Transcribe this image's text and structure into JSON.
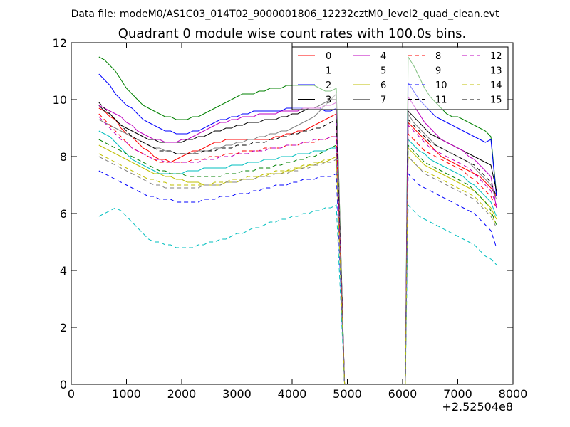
{
  "figure": {
    "suptitle": "Data file: modeM0/AS1C03_014T02_9000001806_12232cztM0_level2_quad_clean.evt"
  },
  "chart_data": {
    "type": "line",
    "title": "Quadrant 0 module wise count rates with 100.0s bins.",
    "xlabel": "",
    "ylabel": "",
    "x_offset_label": "+2.52504e8",
    "xlim": [
      0,
      8000
    ],
    "ylim": [
      0,
      12
    ],
    "xticks": [
      0,
      1000,
      2000,
      3000,
      4000,
      5000,
      6000,
      7000,
      8000
    ],
    "yticks": [
      0,
      2,
      4,
      6,
      8,
      10,
      12
    ],
    "grid": false,
    "legend_position": "top-right",
    "legend_columns": 4,
    "gap": {
      "start": 4950,
      "end": 6050,
      "value": 0
    },
    "segment1": {
      "x_start": 500,
      "x_end": 4800
    },
    "segment2": {
      "x_start": 6100,
      "x_end": 7700
    },
    "series": [
      {
        "name": "0",
        "color": "#ff0000",
        "dash": "solid",
        "seg1": [
          9.7,
          9.6,
          9.4,
          9.3,
          9.0,
          8.8,
          8.7,
          8.5,
          8.3,
          8.2,
          8.0,
          7.9,
          7.9,
          7.8,
          7.9,
          8.0,
          8.1,
          8.2,
          8.2,
          8.3,
          8.4,
          8.5,
          8.5,
          8.6,
          8.6,
          8.6,
          8.6,
          8.6,
          8.6,
          8.6,
          8.6,
          8.6,
          8.7,
          8.7,
          8.8,
          8.8,
          8.9,
          8.9,
          9.0,
          9.1,
          9.2,
          9.3,
          9.4,
          9.5
        ],
        "seg2": [
          9.2,
          9.0,
          8.8,
          8.6,
          8.4,
          8.2,
          8.0,
          7.9,
          7.8,
          7.7,
          7.6,
          7.5,
          7.4,
          7.3,
          7.1,
          6.9,
          6.6
        ]
      },
      {
        "name": "1",
        "color": "#008000",
        "dash": "solid",
        "seg1": [
          11.5,
          11.4,
          11.2,
          11.0,
          10.7,
          10.4,
          10.2,
          10.0,
          9.8,
          9.7,
          9.6,
          9.5,
          9.4,
          9.4,
          9.3,
          9.3,
          9.3,
          9.4,
          9.4,
          9.5,
          9.6,
          9.7,
          9.8,
          9.9,
          10.0,
          10.1,
          10.2,
          10.2,
          10.2,
          10.3,
          10.3,
          10.4,
          10.4,
          10.4,
          10.5,
          10.5,
          10.5,
          10.5,
          10.5,
          10.5,
          10.4,
          10.3,
          10.3,
          10.4
        ],
        "seg2": [
          11.5,
          11.2,
          10.8,
          10.4,
          10.1,
          9.9,
          9.7,
          9.5,
          9.4,
          9.4,
          9.3,
          9.2,
          9.1,
          9.0,
          8.9,
          8.7,
          6.7
        ]
      },
      {
        "name": "2",
        "color": "#0000ff",
        "dash": "solid",
        "seg1": [
          10.9,
          10.7,
          10.5,
          10.2,
          10.0,
          9.8,
          9.7,
          9.5,
          9.3,
          9.2,
          9.1,
          9.0,
          8.9,
          8.9,
          8.8,
          8.8,
          8.8,
          8.9,
          8.9,
          9.0,
          9.1,
          9.2,
          9.3,
          9.3,
          9.4,
          9.4,
          9.5,
          9.5,
          9.6,
          9.6,
          9.6,
          9.6,
          9.6,
          9.6,
          9.7,
          9.7,
          9.7,
          9.7,
          9.7,
          9.7,
          9.7,
          9.6,
          9.6,
          9.7
        ],
        "seg2": [
          10.6,
          10.3,
          10.0,
          9.8,
          9.6,
          9.4,
          9.3,
          9.2,
          9.1,
          9.0,
          8.9,
          8.8,
          8.7,
          8.6,
          8.5,
          8.6,
          6.6
        ]
      },
      {
        "name": "3",
        "color": "#000000",
        "dash": "solid",
        "seg1": [
          9.8,
          9.6,
          9.5,
          9.3,
          9.1,
          9.0,
          8.9,
          8.8,
          8.7,
          8.6,
          8.6,
          8.5,
          8.5,
          8.5,
          8.5,
          8.5,
          8.6,
          8.6,
          8.7,
          8.7,
          8.8,
          8.9,
          8.9,
          9.0,
          9.0,
          9.1,
          9.1,
          9.2,
          9.2,
          9.2,
          9.3,
          9.3,
          9.3,
          9.4,
          9.4,
          9.5,
          9.5,
          9.6,
          9.7,
          9.7,
          9.8,
          9.9,
          10.0,
          10.0
        ],
        "seg2": [
          9.6,
          9.4,
          9.2,
          9.0,
          8.8,
          8.7,
          8.6,
          8.5,
          8.4,
          8.3,
          8.2,
          8.1,
          8.0,
          7.9,
          7.8,
          7.7,
          6.8
        ]
      },
      {
        "name": "4",
        "color": "#bf00bf",
        "dash": "solid",
        "seg1": [
          9.8,
          9.7,
          9.6,
          9.5,
          9.4,
          9.2,
          9.1,
          8.9,
          8.8,
          8.7,
          8.6,
          8.6,
          8.5,
          8.5,
          8.5,
          8.6,
          8.6,
          8.7,
          8.8,
          8.9,
          9.0,
          9.1,
          9.2,
          9.2,
          9.3,
          9.3,
          9.4,
          9.4,
          9.4,
          9.5,
          9.5,
          9.5,
          9.5,
          9.6,
          9.6,
          9.6,
          9.6,
          9.7,
          9.7,
          9.7,
          9.7,
          9.8,
          9.8,
          9.9
        ],
        "seg2": [
          10.1,
          9.8,
          9.5,
          9.2,
          9.0,
          8.8,
          8.6,
          8.5,
          8.4,
          8.3,
          8.2,
          8.0,
          7.9,
          7.7,
          7.5,
          7.3,
          6.2
        ]
      },
      {
        "name": "5",
        "color": "#00bfbf",
        "dash": "solid",
        "seg1": [
          8.9,
          8.8,
          8.7,
          8.5,
          8.3,
          8.1,
          7.9,
          7.8,
          7.7,
          7.6,
          7.5,
          7.4,
          7.4,
          7.4,
          7.4,
          7.4,
          7.5,
          7.5,
          7.5,
          7.6,
          7.6,
          7.6,
          7.6,
          7.6,
          7.7,
          7.7,
          7.7,
          7.8,
          7.8,
          7.8,
          7.9,
          7.9,
          7.9,
          8.0,
          8.0,
          8.0,
          8.1,
          8.1,
          8.1,
          8.2,
          8.2,
          8.2,
          8.3,
          8.3
        ],
        "seg2": [
          8.6,
          8.4,
          8.2,
          8.1,
          7.9,
          7.8,
          7.7,
          7.6,
          7.5,
          7.4,
          7.3,
          7.1,
          7.0,
          6.8,
          6.6,
          6.4,
          5.9
        ]
      },
      {
        "name": "6",
        "color": "#bfbf00",
        "dash": "solid",
        "seg1": [
          8.4,
          8.3,
          8.2,
          8.1,
          8.0,
          7.9,
          7.8,
          7.7,
          7.6,
          7.5,
          7.4,
          7.4,
          7.3,
          7.3,
          7.2,
          7.2,
          7.1,
          7.1,
          7.1,
          7.0,
          7.0,
          7.0,
          7.0,
          7.1,
          7.1,
          7.1,
          7.2,
          7.2,
          7.2,
          7.3,
          7.3,
          7.4,
          7.4,
          7.4,
          7.5,
          7.5,
          7.6,
          7.6,
          7.7,
          7.7,
          7.8,
          7.8,
          7.9,
          8.0
        ],
        "seg2": [
          8.3,
          8.1,
          7.9,
          7.7,
          7.6,
          7.5,
          7.4,
          7.3,
          7.2,
          7.1,
          7.0,
          6.9,
          6.8,
          6.6,
          6.4,
          6.2,
          5.8
        ]
      },
      {
        "name": "7",
        "color": "#808080",
        "dash": "solid",
        "seg1": [
          9.3,
          9.2,
          9.1,
          9.0,
          8.9,
          8.8,
          8.7,
          8.6,
          8.5,
          8.4,
          8.3,
          8.3,
          8.2,
          8.2,
          8.1,
          8.1,
          8.1,
          8.1,
          8.2,
          8.2,
          8.2,
          8.3,
          8.3,
          8.4,
          8.4,
          8.5,
          8.5,
          8.6,
          8.6,
          8.7,
          8.7,
          8.8,
          8.8,
          8.9,
          8.9,
          9.0,
          9.1,
          9.2,
          9.3,
          9.4,
          9.6,
          9.8,
          10.0,
          10.2
        ],
        "seg2": [
          9.5,
          9.2,
          9.0,
          8.8,
          8.6,
          8.4,
          8.3,
          8.2,
          8.1,
          8.0,
          7.9,
          7.8,
          7.6,
          7.4,
          7.2,
          7.0,
          6.5
        ]
      },
      {
        "name": "8",
        "color": "#ff0000",
        "dash": "dashed",
        "seg1": [
          9.5,
          9.3,
          9.1,
          8.9,
          8.7,
          8.5,
          8.3,
          8.2,
          8.1,
          8.0,
          7.9,
          7.8,
          7.8,
          7.8,
          7.8,
          7.8,
          7.8,
          7.9,
          7.9,
          7.9,
          8.0,
          8.0,
          8.0,
          8.1,
          8.1,
          8.1,
          8.2,
          8.2,
          8.2,
          8.2,
          8.3,
          8.3,
          8.3,
          8.3,
          8.4,
          8.4,
          8.4,
          8.5,
          8.5,
          8.5,
          8.6,
          8.6,
          8.7,
          8.7
        ],
        "seg2": [
          8.8,
          8.6,
          8.4,
          8.2,
          8.1,
          8.0,
          7.9,
          7.8,
          7.7,
          7.6,
          7.5,
          7.3,
          7.2,
          7.0,
          6.8,
          6.6,
          6.2
        ]
      },
      {
        "name": "9",
        "color": "#008000",
        "dash": "dashed",
        "seg1": [
          8.6,
          8.5,
          8.4,
          8.3,
          8.2,
          8.1,
          8.0,
          7.9,
          7.8,
          7.7,
          7.6,
          7.5,
          7.5,
          7.4,
          7.4,
          7.4,
          7.3,
          7.3,
          7.3,
          7.3,
          7.3,
          7.3,
          7.3,
          7.4,
          7.4,
          7.4,
          7.5,
          7.5,
          7.5,
          7.6,
          7.6,
          7.6,
          7.7,
          7.7,
          7.8,
          7.8,
          7.9,
          7.9,
          8.0,
          8.0,
          8.1,
          8.2,
          8.3,
          8.4
        ],
        "seg2": [
          8.4,
          8.2,
          8.0,
          7.8,
          7.7,
          7.6,
          7.5,
          7.4,
          7.3,
          7.2,
          7.1,
          7.0,
          6.8,
          6.6,
          6.4,
          6.1,
          5.6
        ]
      },
      {
        "name": "10",
        "color": "#0000ff",
        "dash": "dashed",
        "seg1": [
          7.5,
          7.4,
          7.3,
          7.2,
          7.1,
          7.0,
          6.9,
          6.8,
          6.7,
          6.6,
          6.6,
          6.5,
          6.5,
          6.5,
          6.4,
          6.4,
          6.4,
          6.4,
          6.4,
          6.5,
          6.5,
          6.5,
          6.6,
          6.6,
          6.6,
          6.7,
          6.7,
          6.7,
          6.8,
          6.8,
          6.9,
          6.9,
          7.0,
          7.0,
          7.0,
          7.1,
          7.1,
          7.2,
          7.2,
          7.2,
          7.3,
          7.3,
          7.3,
          7.4
        ],
        "seg2": [
          7.4,
          7.2,
          7.0,
          6.9,
          6.8,
          6.7,
          6.6,
          6.5,
          6.4,
          6.3,
          6.2,
          6.1,
          6.0,
          5.8,
          5.6,
          5.4,
          4.8
        ]
      },
      {
        "name": "11",
        "color": "#000000",
        "dash": "dashed",
        "seg1": [
          9.9,
          9.7,
          9.5,
          9.3,
          9.1,
          8.9,
          8.7,
          8.6,
          8.5,
          8.4,
          8.3,
          8.2,
          8.2,
          8.2,
          8.1,
          8.1,
          8.1,
          8.1,
          8.1,
          8.2,
          8.2,
          8.2,
          8.3,
          8.3,
          8.3,
          8.4,
          8.4,
          8.4,
          8.5,
          8.5,
          8.5,
          8.6,
          8.6,
          8.7,
          8.7,
          8.8,
          8.8,
          8.9,
          8.9,
          9.0,
          9.0,
          9.1,
          9.2,
          9.3
        ],
        "seg2": [
          9.3,
          9.1,
          8.9,
          8.7,
          8.5,
          8.4,
          8.3,
          8.2,
          8.1,
          8.0,
          7.9,
          7.8,
          7.7,
          7.5,
          7.3,
          7.1,
          6.6
        ]
      },
      {
        "name": "12",
        "color": "#bf00bf",
        "dash": "dashed",
        "seg1": [
          9.4,
          9.2,
          9.0,
          8.8,
          8.6,
          8.5,
          8.3,
          8.2,
          8.1,
          8.0,
          7.9,
          7.9,
          7.8,
          7.8,
          7.8,
          7.8,
          7.8,
          7.8,
          7.8,
          7.9,
          7.9,
          7.9,
          8.0,
          8.0,
          8.0,
          8.1,
          8.1,
          8.1,
          8.2,
          8.2,
          8.2,
          8.3,
          8.3,
          8.3,
          8.4,
          8.4,
          8.4,
          8.5,
          8.5,
          8.6,
          8.6,
          8.6,
          8.7,
          8.7
        ],
        "seg2": [
          9.1,
          8.9,
          8.7,
          8.5,
          8.3,
          8.2,
          8.1,
          8.0,
          7.9,
          7.8,
          7.7,
          7.6,
          7.4,
          7.2,
          7.0,
          6.8,
          6.3
        ]
      },
      {
        "name": "13",
        "color": "#00bfbf",
        "dash": "dashed",
        "seg1": [
          5.9,
          6.0,
          6.1,
          6.2,
          6.1,
          5.9,
          5.7,
          5.5,
          5.3,
          5.1,
          5.0,
          5.0,
          4.9,
          4.9,
          4.8,
          4.8,
          4.8,
          4.8,
          4.9,
          4.9,
          5.0,
          5.0,
          5.1,
          5.1,
          5.2,
          5.3,
          5.3,
          5.4,
          5.5,
          5.5,
          5.6,
          5.7,
          5.7,
          5.8,
          5.8,
          5.9,
          5.9,
          6.0,
          6.0,
          6.1,
          6.1,
          6.2,
          6.2,
          6.3
        ],
        "seg2": [
          6.3,
          6.1,
          5.9,
          5.8,
          5.7,
          5.6,
          5.5,
          5.4,
          5.3,
          5.2,
          5.1,
          5.0,
          4.9,
          4.7,
          4.5,
          4.4,
          4.2
        ]
      },
      {
        "name": "14",
        "color": "#bfbf00",
        "dash": "dashed",
        "seg1": [
          8.1,
          8.0,
          7.9,
          7.8,
          7.7,
          7.6,
          7.5,
          7.4,
          7.3,
          7.2,
          7.2,
          7.1,
          7.1,
          7.0,
          7.0,
          7.0,
          7.0,
          7.0,
          7.0,
          7.0,
          7.0,
          7.1,
          7.1,
          7.1,
          7.2,
          7.2,
          7.2,
          7.3,
          7.3,
          7.3,
          7.4,
          7.4,
          7.5,
          7.5,
          7.5,
          7.6,
          7.6,
          7.7,
          7.7,
          7.8,
          7.8,
          7.9,
          7.9,
          8.0
        ],
        "seg2": [
          8.0,
          7.8,
          7.6,
          7.5,
          7.4,
          7.3,
          7.2,
          7.1,
          7.0,
          6.9,
          6.8,
          6.7,
          6.6,
          6.4,
          6.2,
          6.0,
          5.6
        ]
      },
      {
        "name": "15",
        "color": "#808080",
        "dash": "dashed",
        "seg1": [
          8.0,
          7.9,
          7.8,
          7.7,
          7.6,
          7.5,
          7.4,
          7.3,
          7.2,
          7.1,
          7.0,
          7.0,
          6.9,
          6.9,
          6.9,
          6.9,
          6.9,
          6.9,
          6.9,
          7.0,
          7.0,
          7.0,
          7.0,
          7.1,
          7.1,
          7.1,
          7.2,
          7.2,
          7.2,
          7.3,
          7.3,
          7.3,
          7.4,
          7.4,
          7.4,
          7.5,
          7.5,
          7.6,
          7.6,
          7.7,
          7.7,
          7.8,
          7.8,
          7.9
        ],
        "seg2": [
          8.0,
          7.8,
          7.6,
          7.4,
          7.3,
          7.2,
          7.1,
          7.0,
          6.9,
          6.8,
          6.7,
          6.6,
          6.5,
          6.3,
          6.1,
          5.9,
          5.5
        ]
      }
    ]
  }
}
